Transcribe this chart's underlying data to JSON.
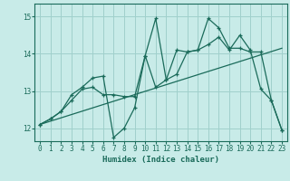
{
  "xlabel": "Humidex (Indice chaleur)",
  "background_color": "#c8ebe8",
  "grid_color": "#a0d0cc",
  "line_color": "#1a6b5a",
  "xlim": [
    -0.5,
    23.5
  ],
  "ylim": [
    11.65,
    15.35
  ],
  "xticks": [
    0,
    1,
    2,
    3,
    4,
    5,
    6,
    7,
    8,
    9,
    10,
    11,
    12,
    13,
    14,
    15,
    16,
    17,
    18,
    19,
    20,
    21,
    22,
    23
  ],
  "yticks": [
    12,
    13,
    14,
    15
  ],
  "line1_x": [
    0,
    1,
    2,
    3,
    4,
    5,
    6,
    7,
    8,
    9,
    10,
    11,
    12,
    13,
    14,
    15,
    16,
    17,
    18,
    19,
    20,
    21,
    22,
    23
  ],
  "line1_y": [
    12.1,
    12.25,
    12.45,
    12.9,
    13.1,
    13.35,
    13.4,
    11.75,
    12.0,
    12.55,
    13.95,
    14.95,
    13.3,
    13.45,
    14.05,
    14.1,
    14.95,
    14.7,
    14.15,
    14.15,
    14.05,
    14.05,
    12.75,
    11.95
  ],
  "line2_x": [
    0,
    1,
    2,
    3,
    4,
    5,
    6,
    7,
    8,
    9,
    10,
    11,
    12,
    13,
    14,
    15,
    16,
    17,
    18,
    19,
    20,
    21,
    22,
    23
  ],
  "line2_y": [
    12.1,
    12.25,
    12.45,
    12.75,
    13.05,
    13.1,
    12.9,
    12.9,
    12.85,
    12.85,
    13.95,
    13.1,
    13.3,
    14.1,
    14.05,
    14.1,
    14.25,
    14.45,
    14.1,
    14.5,
    14.1,
    13.05,
    12.75,
    11.95
  ],
  "line3_x": [
    0,
    23
  ],
  "line3_y": [
    12.1,
    14.15
  ]
}
